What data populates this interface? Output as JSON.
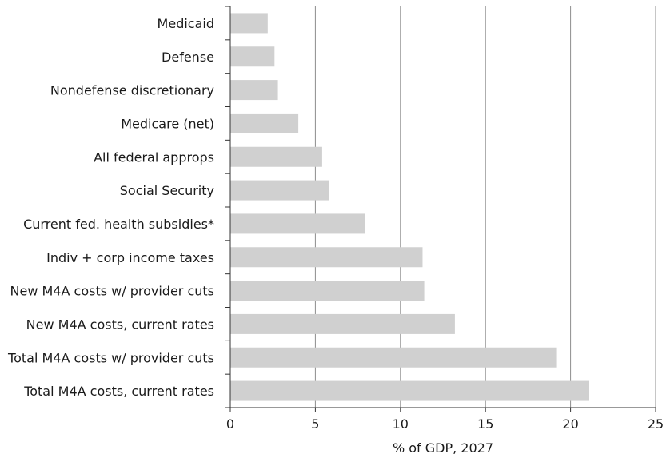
{
  "chart_data": {
    "type": "bar",
    "orientation": "horizontal",
    "categories": [
      "Medicaid",
      "Defense",
      "Nondefense discretionary",
      "Medicare (net)",
      "All federal approps",
      "Social Security",
      "Current fed. health subsidies*",
      "Indiv + corp income taxes",
      "New M4A costs w/ provider cuts",
      "New M4A costs, current rates",
      "Total M4A costs w/ provider cuts",
      "Total M4A costs, current rates"
    ],
    "values": [
      2.2,
      2.6,
      2.8,
      4.0,
      5.4,
      5.8,
      7.9,
      11.3,
      11.4,
      13.2,
      19.2,
      21.1
    ],
    "xlabel": "% of GDP, 2027",
    "ylabel": "",
    "xlim": [
      0,
      25
    ],
    "xticks": [
      0,
      5,
      10,
      15,
      20,
      25
    ],
    "grid": "vertical",
    "legend": "none",
    "bar_color": "#d0d0d0",
    "grid_color": "#8c8c8c",
    "axis_color": "#333333"
  }
}
